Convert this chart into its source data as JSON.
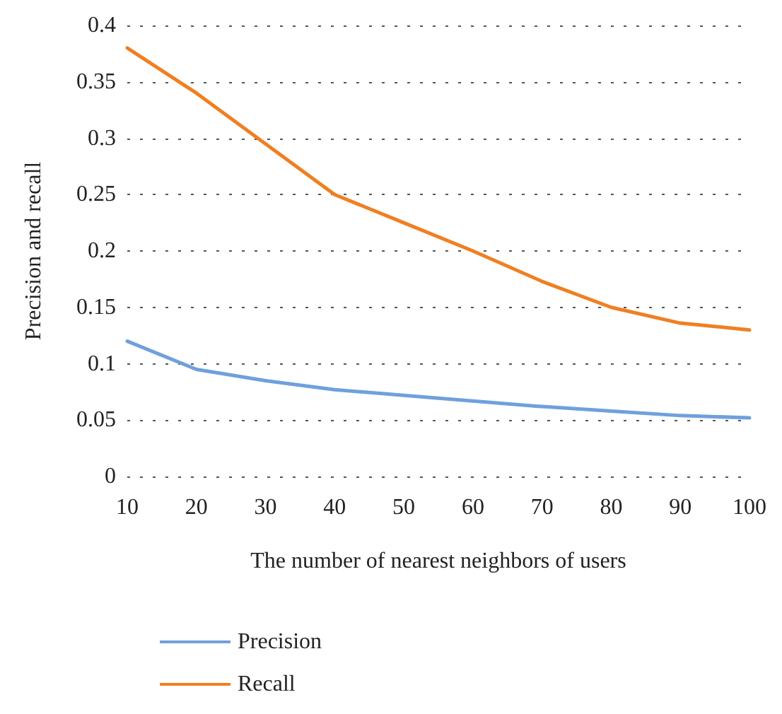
{
  "chart_data": {
    "type": "line",
    "xlabel": "The number of nearest neighbors of users",
    "ylabel": "Precision and recall",
    "categories": [
      "10",
      "20",
      "30",
      "40",
      "50",
      "60",
      "70",
      "80",
      "90",
      "100"
    ],
    "series": [
      {
        "name": "Precision",
        "color": "#6fa0dc",
        "values": [
          0.12,
          0.095,
          0.085,
          0.077,
          0.072,
          0.067,
          0.062,
          0.058,
          0.054,
          0.052
        ]
      },
      {
        "name": "Recall",
        "color": "#f07f22",
        "values": [
          0.38,
          0.34,
          0.295,
          0.25,
          0.225,
          0.2,
          0.173,
          0.15,
          0.136,
          0.13
        ]
      }
    ],
    "ylim": [
      0,
      0.4
    ],
    "yticks": [
      0,
      0.05,
      0.1,
      0.15,
      0.2,
      0.25,
      0.3,
      0.35,
      0.4
    ],
    "grid": "y",
    "legend": "bottom",
    "marker": "none",
    "line_style": "solid"
  }
}
